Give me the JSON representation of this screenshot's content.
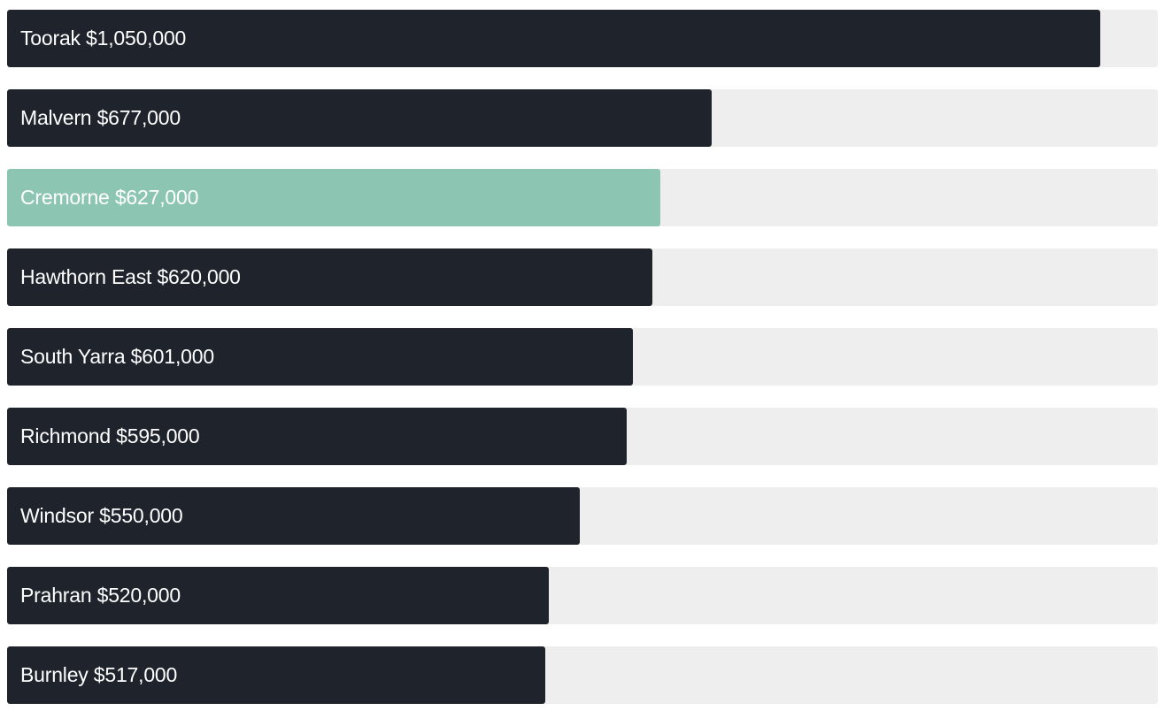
{
  "chart_data": {
    "type": "bar",
    "orientation": "horizontal",
    "categories": [
      "Toorak",
      "Malvern",
      "Cremorne",
      "Hawthorn East",
      "South Yarra",
      "Richmond",
      "Windsor",
      "Prahran",
      "Burnley"
    ],
    "values": [
      1050000,
      677000,
      627000,
      620000,
      601000,
      595000,
      550000,
      520000,
      517000
    ],
    "labels": [
      "Toorak $1,050,000",
      "Malvern $677,000",
      "Cremorne $627,000",
      "Hawthorn East $620,000",
      "South Yarra $601,000",
      "Richmond $595,000",
      "Windsor $550,000",
      "Prahran $520,000",
      "Burnley $517,000"
    ],
    "highlighted": "Cremorne",
    "xlim": [
      0,
      1105000
    ],
    "grid": false,
    "colors": {
      "bar": "#1f242c",
      "highlight": "#8dc5b3",
      "track": "#eeeeee",
      "label": "#ffffff"
    }
  }
}
